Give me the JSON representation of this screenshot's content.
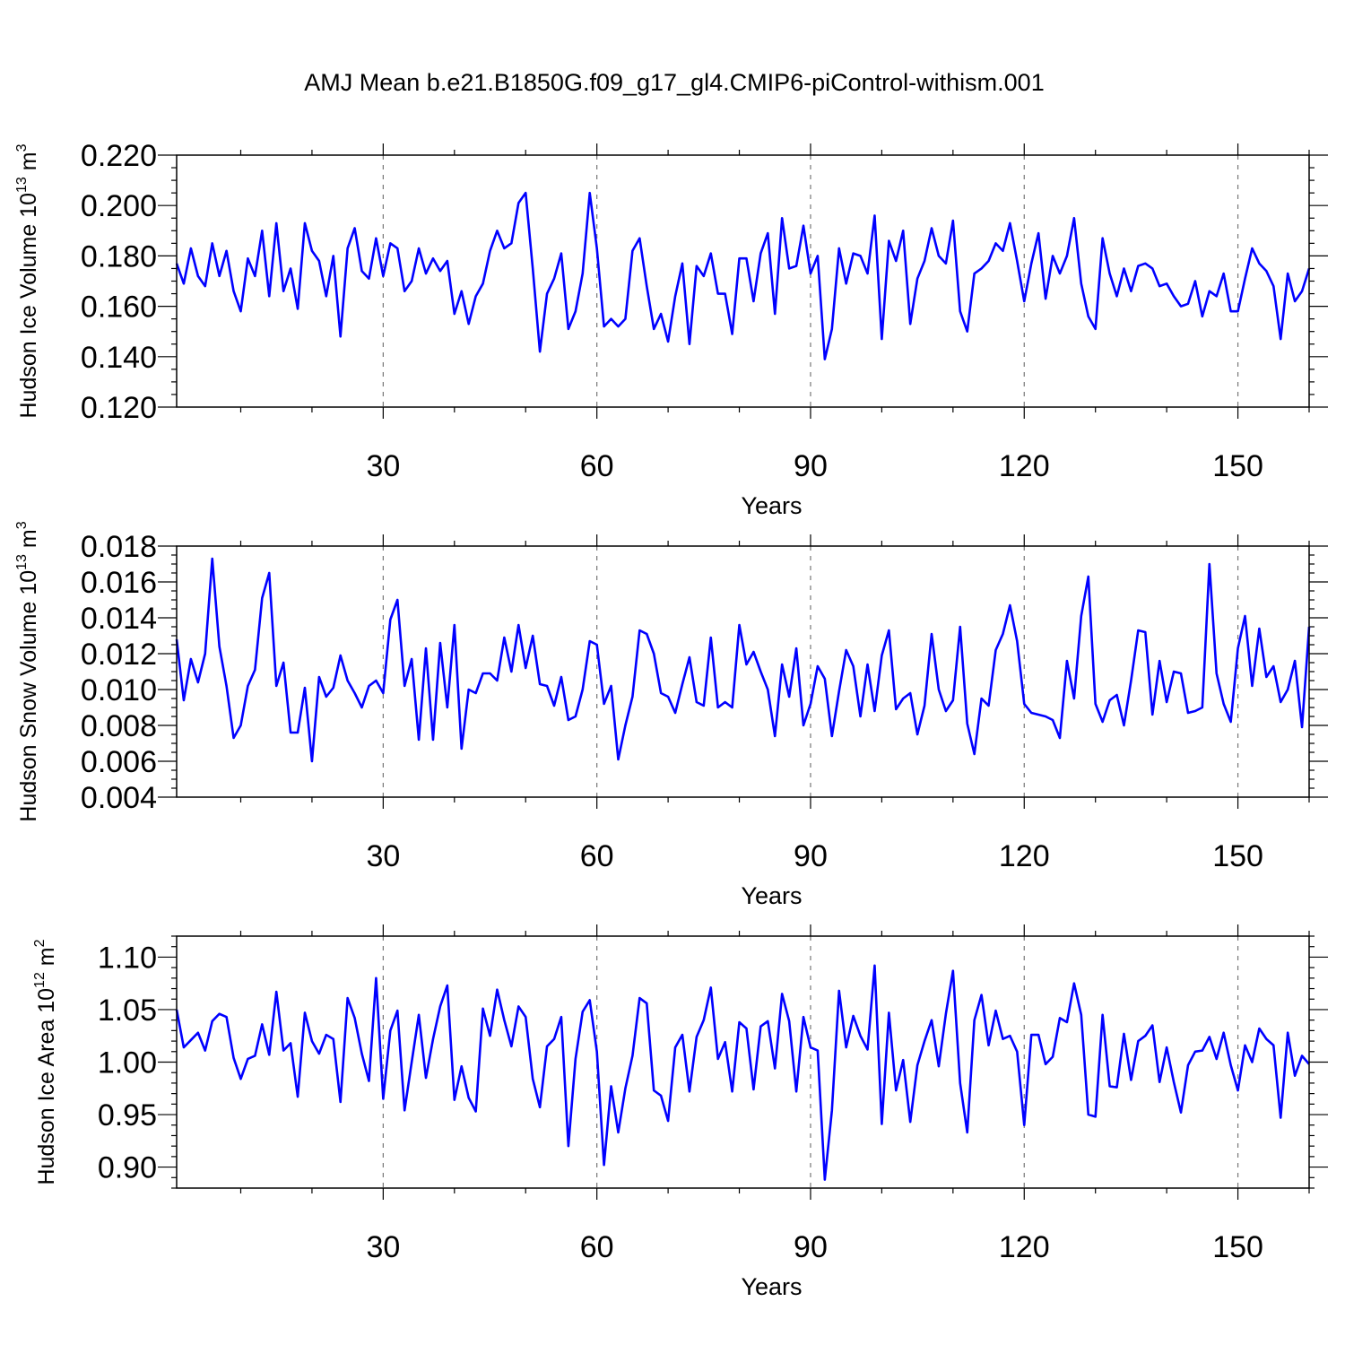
{
  "title": "AMJ Mean b.e21.B1850G.f09_g17_gl4.CMIP6-piControl-withism.001",
  "colors": {
    "series": "#0000ff",
    "grid": "#777777",
    "axis": "#000000"
  },
  "chart_data": [
    {
      "type": "line",
      "title": "",
      "xlabel": "Years",
      "ylabel": {
        "text": "Hudson Ice Volume 10",
        "exp": "13",
        "unit": " m",
        "unit_exp": "3"
      },
      "xlim": [
        1,
        160
      ],
      "ylim": [
        0.12,
        0.22
      ],
      "x_major_ticks": [
        30,
        60,
        90,
        120,
        150
      ],
      "x_tick_labels": [
        "30",
        "60",
        "90",
        "120",
        "150"
      ],
      "x_minor_step": 10,
      "y_major_ticks": [
        0.12,
        0.14,
        0.16,
        0.18,
        0.2,
        0.22
      ],
      "y_tick_labels": [
        "0.120",
        "0.140",
        "0.160",
        "0.180",
        "0.200",
        "0.220"
      ],
      "y_minor_step": 0.005,
      "grid": "vertical dashed at major x ticks",
      "x_start": 1,
      "series": [
        {
          "values": [
            0.177,
            0.169,
            0.183,
            0.172,
            0.168,
            0.185,
            0.172,
            0.182,
            0.166,
            0.158,
            0.179,
            0.172,
            0.19,
            0.164,
            0.193,
            0.166,
            0.175,
            0.159,
            0.193,
            0.182,
            0.178,
            0.164,
            0.18,
            0.148,
            0.183,
            0.191,
            0.174,
            0.171,
            0.187,
            0.172,
            0.185,
            0.183,
            0.166,
            0.17,
            0.183,
            0.173,
            0.179,
            0.174,
            0.178,
            0.157,
            0.166,
            0.153,
            0.164,
            0.169,
            0.182,
            0.19,
            0.183,
            0.185,
            0.201,
            0.205,
            0.175,
            0.142,
            0.165,
            0.171,
            0.181,
            0.151,
            0.158,
            0.173,
            0.205,
            0.183,
            0.152,
            0.155,
            0.152,
            0.155,
            0.182,
            0.187,
            0.168,
            0.151,
            0.157,
            0.146,
            0.164,
            0.177,
            0.145,
            0.176,
            0.172,
            0.181,
            0.165,
            0.165,
            0.149,
            0.179,
            0.179,
            0.162,
            0.181,
            0.189,
            0.157,
            0.195,
            0.175,
            0.176,
            0.192,
            0.173,
            0.18,
            0.139,
            0.151,
            0.183,
            0.169,
            0.181,
            0.18,
            0.173,
            0.196,
            0.147,
            0.186,
            0.178,
            0.19,
            0.153,
            0.171,
            0.178,
            0.191,
            0.18,
            0.177,
            0.194,
            0.158,
            0.15,
            0.173,
            0.175,
            0.178,
            0.185,
            0.182,
            0.193,
            0.178,
            0.162,
            0.177,
            0.189,
            0.163,
            0.18,
            0.173,
            0.18,
            0.195,
            0.169,
            0.156,
            0.151,
            0.187,
            0.173,
            0.164,
            0.175,
            0.166,
            0.176,
            0.177,
            0.175,
            0.168,
            0.169,
            0.164,
            0.16,
            0.161,
            0.17,
            0.156,
            0.166,
            0.164,
            0.173,
            0.158,
            0.158,
            0.171,
            0.183,
            0.177,
            0.174,
            0.168,
            0.147,
            0.173,
            0.162,
            0.166,
            0.175
          ]
        }
      ]
    },
    {
      "type": "line",
      "title": "",
      "xlabel": "Years",
      "ylabel": {
        "text": "Hudson Snow Volume 10",
        "exp": "13",
        "unit": " m",
        "unit_exp": "3"
      },
      "xlim": [
        1,
        160
      ],
      "ylim": [
        0.004,
        0.018
      ],
      "x_major_ticks": [
        30,
        60,
        90,
        120,
        150
      ],
      "x_tick_labels": [
        "30",
        "60",
        "90",
        "120",
        "150"
      ],
      "x_minor_step": 10,
      "y_major_ticks": [
        0.004,
        0.006,
        0.008,
        0.01,
        0.012,
        0.014,
        0.016,
        0.018
      ],
      "y_tick_labels": [
        "0.004",
        "0.006",
        "0.008",
        "0.010",
        "0.012",
        "0.014",
        "0.016",
        "0.018"
      ],
      "y_minor_step": 0.0005,
      "grid": "vertical dashed at major x ticks",
      "x_start": 1,
      "series": [
        {
          "values": [
            0.0128,
            0.0094,
            0.0117,
            0.0104,
            0.012,
            0.0173,
            0.0124,
            0.0102,
            0.0073,
            0.008,
            0.0102,
            0.0111,
            0.0151,
            0.0165,
            0.0102,
            0.0115,
            0.0076,
            0.0076,
            0.0101,
            0.006,
            0.0107,
            0.0096,
            0.0101,
            0.0119,
            0.0105,
            0.0098,
            0.009,
            0.0102,
            0.0105,
            0.0098,
            0.0139,
            0.015,
            0.0102,
            0.0117,
            0.0072,
            0.0123,
            0.0072,
            0.0126,
            0.009,
            0.0136,
            0.0067,
            0.01,
            0.0098,
            0.0109,
            0.0109,
            0.0105,
            0.0129,
            0.011,
            0.0136,
            0.0112,
            0.013,
            0.0103,
            0.0102,
            0.0091,
            0.0107,
            0.0083,
            0.0085,
            0.01,
            0.0127,
            0.0125,
            0.0092,
            0.0102,
            0.0061,
            0.008,
            0.0096,
            0.0133,
            0.0131,
            0.012,
            0.0098,
            0.0096,
            0.0087,
            0.0103,
            0.0118,
            0.0093,
            0.0091,
            0.0129,
            0.009,
            0.0093,
            0.009,
            0.0136,
            0.0114,
            0.0121,
            0.011,
            0.01,
            0.0074,
            0.0114,
            0.0096,
            0.0123,
            0.008,
            0.0092,
            0.0113,
            0.0106,
            0.0074,
            0.0099,
            0.0122,
            0.0113,
            0.0085,
            0.0114,
            0.0088,
            0.0119,
            0.0133,
            0.0089,
            0.0095,
            0.0098,
            0.0075,
            0.0091,
            0.0131,
            0.01,
            0.0088,
            0.0094,
            0.0135,
            0.0081,
            0.0064,
            0.0095,
            0.0091,
            0.0122,
            0.0131,
            0.0147,
            0.0127,
            0.0092,
            0.0087,
            0.0086,
            0.0085,
            0.0083,
            0.0073,
            0.0116,
            0.0095,
            0.0141,
            0.0163,
            0.0092,
            0.0082,
            0.0094,
            0.0097,
            0.008,
            0.0105,
            0.0133,
            0.0132,
            0.0086,
            0.0116,
            0.0093,
            0.011,
            0.0109,
            0.0087,
            0.0088,
            0.009,
            0.017,
            0.0109,
            0.0092,
            0.0082,
            0.0123,
            0.0141,
            0.0102,
            0.0134,
            0.0107,
            0.0113,
            0.0093,
            0.01,
            0.0116,
            0.0079,
            0.0135
          ]
        }
      ]
    },
    {
      "type": "line",
      "title": "",
      "xlabel": "Years",
      "ylabel": {
        "text": "Hudson Ice Area 10",
        "exp": "12",
        "unit": " m",
        "unit_exp": "2"
      },
      "xlim": [
        1,
        160
      ],
      "ylim": [
        0.88,
        1.12
      ],
      "x_major_ticks": [
        30,
        60,
        90,
        120,
        150
      ],
      "x_tick_labels": [
        "30",
        "60",
        "90",
        "120",
        "150"
      ],
      "x_minor_step": 10,
      "y_major_ticks": [
        0.9,
        0.95,
        1.0,
        1.05,
        1.1
      ],
      "y_tick_labels": [
        "0.90",
        "0.95",
        "1.00",
        "1.05",
        "1.10"
      ],
      "y_minor_step": 0.01,
      "grid": "vertical dashed at major x ticks",
      "x_start": 1,
      "series": [
        {
          "values": [
            1.05,
            1.014,
            1.021,
            1.028,
            1.011,
            1.039,
            1.046,
            1.043,
            1.004,
            0.984,
            1.003,
            1.006,
            1.036,
            1.007,
            1.067,
            1.011,
            1.018,
            0.967,
            1.047,
            1.02,
            1.008,
            1.026,
            1.022,
            0.962,
            1.061,
            1.042,
            1.008,
            0.982,
            1.08,
            0.965,
            1.03,
            1.049,
            0.954,
            1.0,
            1.045,
            0.985,
            1.022,
            1.053,
            1.073,
            0.964,
            0.996,
            0.966,
            0.953,
            1.051,
            1.025,
            1.069,
            1.04,
            1.015,
            1.053,
            1.043,
            0.984,
            0.957,
            1.015,
            1.022,
            1.043,
            0.92,
            1.003,
            1.048,
            1.059,
            1.01,
            0.902,
            0.977,
            0.933,
            0.975,
            1.006,
            1.061,
            1.056,
            0.973,
            0.968,
            0.944,
            1.014,
            1.026,
            0.972,
            1.024,
            1.04,
            1.071,
            1.003,
            1.019,
            0.972,
            1.038,
            1.032,
            0.974,
            1.034,
            1.039,
            0.994,
            1.065,
            1.039,
            0.972,
            1.043,
            1.014,
            1.011,
            0.888,
            0.954,
            1.068,
            1.014,
            1.044,
            1.025,
            1.012,
            1.092,
            0.941,
            1.047,
            0.973,
            1.002,
            0.943,
            0.997,
            1.02,
            1.04,
            0.996,
            1.046,
            1.087,
            0.98,
            0.933,
            1.04,
            1.064,
            1.016,
            1.049,
            1.022,
            1.025,
            1.01,
            0.94,
            1.026,
            1.026,
            0.998,
            1.005,
            1.042,
            1.038,
            1.075,
            1.045,
            0.95,
            0.948,
            1.045,
            0.977,
            0.976,
            1.027,
            0.983,
            1.02,
            1.025,
            1.035,
            0.981,
            1.014,
            0.981,
            0.952,
            0.997,
            1.01,
            1.011,
            1.024,
            1.003,
            1.028,
            0.997,
            0.973,
            1.016,
            1.0,
            1.032,
            1.022,
            1.016,
            0.947,
            1.028,
            0.987,
            1.006,
            0.998
          ]
        }
      ]
    }
  ]
}
